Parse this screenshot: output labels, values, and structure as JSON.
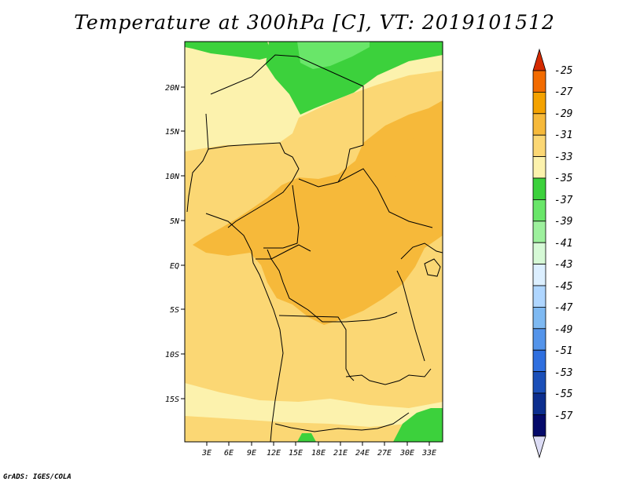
{
  "title": "Temperature at 300hPa [C], VT: 2019101512",
  "credit": "GrADS: IGES/COLA",
  "map": {
    "lat_labels": [
      "20N",
      "15N",
      "10N",
      "5N",
      "EQ",
      "5S",
      "10S",
      "15S"
    ],
    "lon_labels": [
      "3E",
      "6E",
      "9E",
      "12E",
      "15E",
      "18E",
      "21E",
      "24E",
      "27E",
      "30E",
      "33E"
    ]
  },
  "colorbar": {
    "labels": [
      "-25",
      "-27",
      "-29",
      "-31",
      "-33",
      "-35",
      "-37",
      "-39",
      "-41",
      "-43",
      "-45",
      "-47",
      "-49",
      "-51",
      "-53",
      "-55",
      "-57"
    ],
    "colors": [
      "#d42a00",
      "#f26b00",
      "#f4a200",
      "#f6b93a",
      "#fbd774",
      "#fcf2ad",
      "#3cd13c",
      "#69e669",
      "#9df09d",
      "#d6f9d6",
      "#dcefff",
      "#afd6ff",
      "#7eb9f2",
      "#5494ea",
      "#2f6fdf",
      "#1b4fb8",
      "#0c2e8e",
      "#050a6a",
      "#dcdcf5"
    ]
  }
}
